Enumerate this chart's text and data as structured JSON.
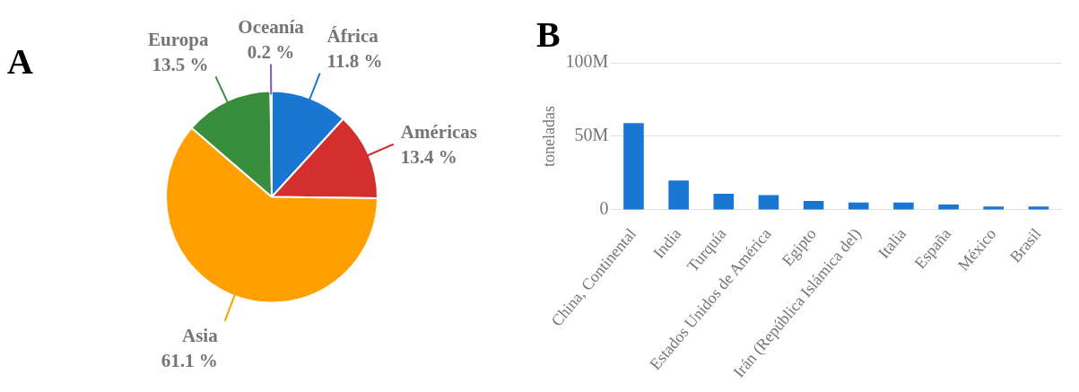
{
  "chart_data": [
    {
      "type": "pie",
      "title": "A",
      "categories": [
        "África",
        "Américas",
        "Asia",
        "Europa",
        "Oceanía"
      ],
      "values": [
        11.8,
        13.4,
        61.1,
        13.5,
        0.2
      ],
      "value_labels": [
        "11.8 %",
        "13.4 %",
        "61.1 %",
        "13.5 %",
        "0.2 %"
      ],
      "colors": [
        "#1976d2",
        "#d32f2f",
        "#ff9f00",
        "#388e3c",
        "#7e57c2"
      ]
    },
    {
      "type": "bar",
      "title": "B",
      "ylabel": "toneladas",
      "categories": [
        "China, Continental",
        "India",
        "Turquía",
        "Estados Unidos de América",
        "Egipto",
        "Irán (República Islámica del)",
        "Italia",
        "España",
        "México",
        "Brasil"
      ],
      "values": [
        59000000,
        20000000,
        11000000,
        10000000,
        6000000,
        5000000,
        5000000,
        3600000,
        2300000,
        2300000
      ],
      "color": "#1976d2",
      "ylim": [
        0,
        100000000
      ],
      "yticks": [
        0,
        {
          "value": 50000000,
          "label": "50M"
        },
        {
          "value": 100000000,
          "label": "100M"
        }
      ],
      "grid": "y"
    }
  ]
}
